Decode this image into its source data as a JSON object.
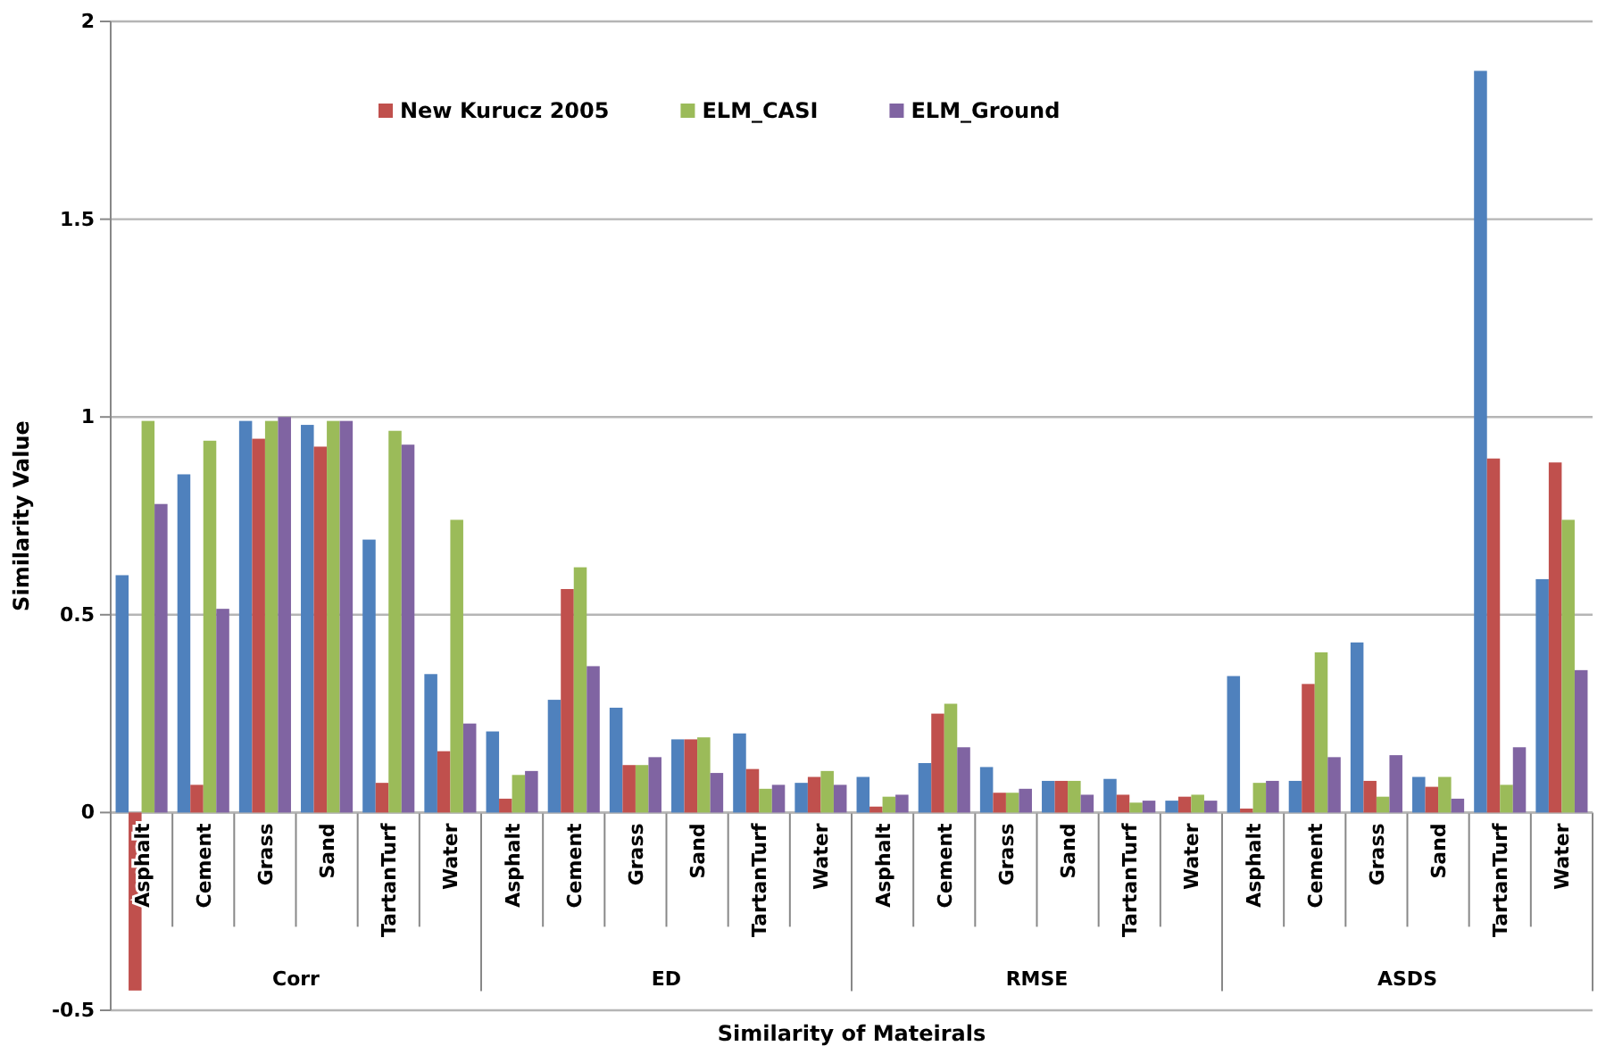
{
  "chart_data": {
    "type": "bar",
    "xlabel": "Similarity of Mateirals",
    "ylabel": "Similarity Value",
    "categories": [
      "Asphalt",
      "Cement",
      "Grass",
      "Sand",
      "TartanTurf",
      "Water",
      "Asphalt",
      "Cement",
      "Grass",
      "Sand",
      "TartanTurf",
      "Water",
      "Asphalt",
      "Cement",
      "Grass",
      "Sand",
      "TartanTurf",
      "Water",
      "Asphalt",
      "Cement",
      "Grass",
      "Sand",
      "TartanTurf",
      "Water"
    ],
    "annotations": [
      "Corr",
      "ED",
      "RMSE",
      "ASDS"
    ],
    "series": [
      {
        "color": "#4f81bd",
        "values": [
          0.6,
          0.855,
          0.99,
          0.98,
          0.69,
          0.35,
          0.205,
          0.285,
          0.265,
          0.185,
          0.2,
          0.075,
          0.09,
          0.125,
          0.115,
          0.08,
          0.085,
          0.03,
          0.345,
          0.08,
          0.43,
          0.09,
          1.875,
          0.59
        ]
      },
      {
        "name": "New Kurucz 2005",
        "color": "#c0504d",
        "values": [
          -0.45,
          0.07,
          0.945,
          0.925,
          0.075,
          0.155,
          0.035,
          0.565,
          0.12,
          0.185,
          0.11,
          0.09,
          0.015,
          0.25,
          0.05,
          0.08,
          0.045,
          0.04,
          0.01,
          0.325,
          0.08,
          0.065,
          0.895,
          0.885
        ]
      },
      {
        "name": "ELM_CASI",
        "color": "#9bbb59",
        "values": [
          0.99,
          0.94,
          0.99,
          0.99,
          0.965,
          0.74,
          0.095,
          0.62,
          0.12,
          0.19,
          0.06,
          0.105,
          0.04,
          0.275,
          0.05,
          0.08,
          0.025,
          0.045,
          0.075,
          0.405,
          0.04,
          0.09,
          0.07,
          0.74
        ]
      },
      {
        "name": "ELM_Ground",
        "color": "#8064a2",
        "values": [
          0.78,
          0.515,
          1.0,
          0.99,
          0.93,
          0.225,
          0.105,
          0.37,
          0.14,
          0.1,
          0.07,
          0.07,
          0.045,
          0.165,
          0.06,
          0.045,
          0.03,
          0.03,
          0.08,
          0.14,
          0.145,
          0.035,
          0.165,
          0.36
        ]
      }
    ],
    "ylim": [
      -0.5,
      2
    ],
    "yticks": [
      -0.5,
      0,
      0.5,
      1,
      1.5,
      2
    ],
    "grid": "y",
    "legend": "top left"
  }
}
